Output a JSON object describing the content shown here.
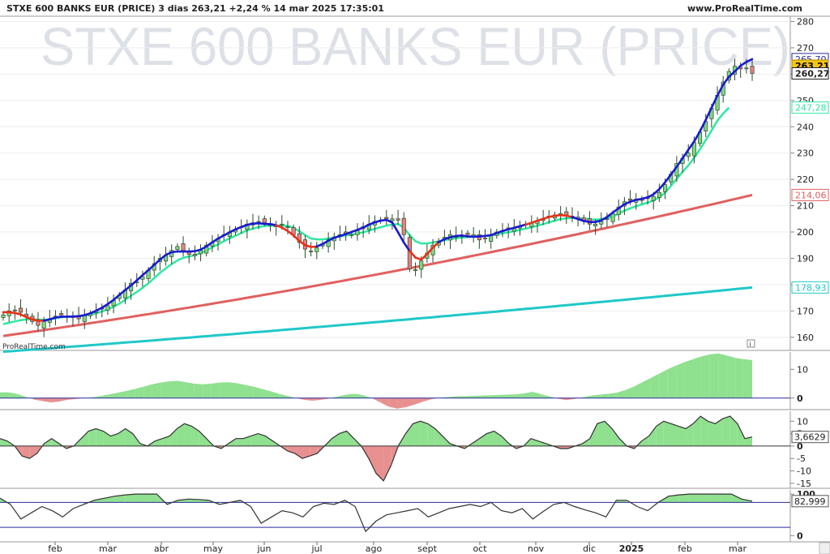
{
  "header": {
    "title": "STXE 600 BANKS EUR (PRICE) 3 dias 263,21 +2,24 % 14 mar 2025 17:35:01",
    "site": "www.ProRealTime.com"
  },
  "watermark": "STXE 600 BANKS EUR (PRICE)",
  "credit": "ProRealTime.com",
  "info_icon": "i",
  "colors": {
    "up_candle": "#7ed87e",
    "down_candle": "#e88080",
    "ma_fast_up": "#1a1ad0",
    "ma_fast_down": "#e8301a",
    "ma_mid": "#2ee8a0",
    "ma_slow": "#e06060",
    "ma_long": "#20c8c8",
    "osc_pos": "#8fe08f",
    "osc_neg": "#e89090",
    "level_line": "#2a2aa0"
  },
  "chart_data": [
    {
      "type": "candlestick",
      "title": "STXE 600 BANKS EUR (PRICE)",
      "x_tick_labels": [
        "feb",
        "mar",
        "abr",
        "may",
        "jun",
        "jul",
        "ago",
        "sept",
        "oct",
        "nov",
        "dic",
        "2025",
        "feb",
        "mar"
      ],
      "ylim": [
        155,
        282
      ],
      "y_ticks": [
        160,
        170,
        180,
        190,
        200,
        210,
        220,
        230,
        240,
        250,
        260,
        270,
        280
      ],
      "price_labels": [
        {
          "text": "265,70",
          "value": 265.7,
          "color": "#2a2aa0"
        },
        {
          "text": "263,21",
          "value": 263.21,
          "color": "#f5c518"
        },
        {
          "text": "260,27",
          "value": 260.27,
          "color": "#222222"
        },
        {
          "text": "247,28",
          "value": 247.28,
          "color": "#2ee8a0"
        },
        {
          "text": "214,06",
          "value": 214.06,
          "color": "#e06060"
        },
        {
          "text": "178,93",
          "value": 178.93,
          "color": "#20c8c8"
        }
      ],
      "close": [
        168.5,
        170,
        170,
        169.5,
        168,
        166,
        164.5,
        166,
        167,
        168,
        168.5,
        168,
        167.5,
        167,
        168.5,
        169,
        170,
        171,
        172,
        174,
        176,
        178,
        180.5,
        181,
        183,
        185.5,
        188,
        190,
        191,
        193,
        194.5,
        193,
        191.5,
        191,
        193,
        195,
        196,
        197.5,
        199,
        200,
        201,
        202,
        203,
        203.5,
        204,
        203.5,
        202.5,
        202,
        203,
        202,
        199,
        196,
        193.5,
        192.5,
        194,
        195.5,
        197,
        198,
        199,
        199.5,
        199,
        200.5,
        202,
        203,
        204,
        204.5,
        205,
        205,
        204.5,
        199,
        186,
        185.5,
        189,
        192,
        195,
        196.5,
        198,
        199,
        198,
        198.5,
        199,
        199,
        197,
        197.5,
        199,
        200,
        200.5,
        201,
        201.5,
        202,
        203,
        203.5,
        204,
        205,
        206,
        206.5,
        207,
        206.5,
        206,
        205,
        204,
        203,
        203,
        204,
        205,
        207,
        209.5,
        211.5,
        212,
        212.5,
        212,
        213,
        213.5,
        215,
        218,
        222,
        226,
        228,
        230,
        234,
        238,
        242,
        247,
        252,
        257,
        261,
        263,
        262,
        262,
        260.27
      ],
      "ma_fast_red_segments": [
        [
          0,
          6
        ],
        [
          47,
          53
        ],
        [
          70,
          74
        ],
        [
          90,
          97
        ]
      ],
      "ma_mid": [
        165,
        165.5,
        166,
        166.5,
        166.8,
        166.8,
        166.7,
        166.6,
        166.8,
        167.2,
        167.6,
        167.8,
        167.9,
        168,
        168.2,
        168.6,
        169.1,
        169.8,
        170.6,
        171.6,
        172.8,
        174.2,
        175.8,
        177.2,
        178.8,
        180.5,
        182.5,
        184.5,
        186.2,
        187.8,
        189.2,
        190.2,
        190.7,
        191.2,
        192,
        193,
        194.2,
        195.3,
        196.5,
        197.6,
        198.6,
        199.6,
        200.6,
        201.3,
        201.9,
        202.3,
        202.4,
        202.4,
        202.5,
        202.3,
        201.6,
        200.3,
        198.8,
        197.5,
        197.2,
        197.2,
        197.5,
        197.9,
        198.3,
        198.7,
        199,
        199.4,
        199.9,
        200.5,
        201.2,
        201.8,
        202.4,
        202.8,
        203,
        201.7,
        198.8,
        196.5,
        195.6,
        195.7,
        196,
        196.4,
        196.9,
        197.3,
        197.6,
        197.9,
        198.1,
        198.3,
        198.4,
        198.5,
        198.8,
        199.1,
        199.5,
        199.9,
        200.3,
        200.8,
        201.3,
        201.8,
        202.4,
        203,
        203.7,
        204.3,
        204.9,
        205.2,
        205.3,
        205.2,
        205,
        204.8,
        204.7,
        204.9,
        205.3,
        206,
        207,
        208.1,
        209,
        209.8,
        210.5,
        211.2,
        212,
        213.2,
        215,
        217.5,
        220.2,
        222.8,
        225.3,
        228.2,
        231.4,
        234.9,
        238.6,
        242.3,
        245,
        247.28
      ],
      "ma_slow_start": 160.5,
      "ma_slow_end": 214.06,
      "ma_long_start": 154.5,
      "ma_long_end": 178.93
    },
    {
      "type": "area",
      "title": "",
      "y_ticks": [
        0,
        10
      ],
      "ylim": [
        -4,
        16
      ],
      "level": 0,
      "values": [
        2,
        2,
        1.5,
        0.5,
        -0.5,
        -1,
        -1.5,
        -1.2,
        -0.6,
        -0.3,
        0,
        0.3,
        0.8,
        1.3,
        1.9,
        2.5,
        3.2,
        4,
        4.8,
        5.4,
        5.8,
        6,
        5.5,
        5,
        4.8,
        5,
        5.4,
        5.5,
        5.2,
        4.6,
        4,
        3.2,
        2.4,
        1.5,
        0.8,
        0,
        -0.6,
        -0.9,
        -0.6,
        -0.1,
        0.6,
        1.2,
        1.5,
        1,
        0,
        -1.5,
        -3,
        -3.6,
        -3.2,
        -2.3,
        -1.3,
        -0.4,
        0.1,
        0.4,
        0.6,
        0.7,
        0.8,
        0.9,
        1,
        1.1,
        1.2,
        1.3,
        1.6,
        2.2,
        1.4,
        0.6,
        -0.2,
        -0.7,
        -0.3,
        0.3,
        0.9,
        1.2,
        1.5,
        1.9,
        2.8,
        4,
        5.5,
        7,
        8.5,
        10,
        11.3,
        12.5,
        13.5,
        14.5,
        15.2,
        15.5,
        14.8,
        14,
        13.5,
        13.2
      ]
    },
    {
      "type": "area",
      "title": "",
      "y_ticks": [
        -15,
        -10,
        -5,
        0,
        5,
        10
      ],
      "ylim": [
        -17,
        14
      ],
      "level": 0,
      "value_label": "3,6629",
      "values": [
        3,
        2,
        0,
        -4,
        -5,
        -3,
        1,
        3,
        1,
        -1,
        0,
        3,
        6,
        7,
        6,
        4,
        5,
        7,
        5,
        1,
        0,
        2,
        3,
        4,
        7,
        9,
        8,
        6,
        3,
        0,
        -1,
        1,
        3,
        3,
        4,
        5,
        4,
        2,
        0,
        -2,
        -3,
        -5,
        -4,
        -3,
        0,
        3,
        5,
        6,
        3,
        0,
        -5,
        -11,
        -14,
        -8,
        0,
        5,
        9,
        10,
        9,
        7,
        4,
        1,
        0,
        -1,
        1,
        3,
        5,
        6,
        4,
        1,
        -1,
        0,
        3,
        2,
        1,
        0,
        -1,
        -1,
        0,
        1,
        3,
        9,
        10,
        7,
        3,
        0,
        -1,
        2,
        4,
        8,
        10,
        9,
        8,
        7,
        9,
        12,
        10,
        9,
        11,
        12,
        9,
        3,
        3.66
      ]
    },
    {
      "type": "area",
      "title": "",
      "y_ticks": [
        0,
        100
      ],
      "ylim": [
        -15,
        110
      ],
      "levels": [
        80,
        20
      ],
      "value_label": "82,999",
      "values": [
        90,
        75,
        40,
        55,
        70,
        60,
        45,
        65,
        75,
        85,
        90,
        95,
        98,
        100,
        100,
        100,
        75,
        85,
        88,
        87,
        85,
        75,
        80,
        85,
        70,
        30,
        45,
        60,
        55,
        45,
        70,
        78,
        75,
        85,
        70,
        10,
        35,
        50,
        55,
        60,
        65,
        45,
        55,
        65,
        70,
        75,
        70,
        80,
        60,
        55,
        65,
        40,
        58,
        75,
        80,
        70,
        62,
        55,
        45,
        85,
        85,
        70,
        60,
        80,
        95,
        98,
        100,
        100,
        100,
        100,
        100,
        88,
        83
      ]
    }
  ]
}
